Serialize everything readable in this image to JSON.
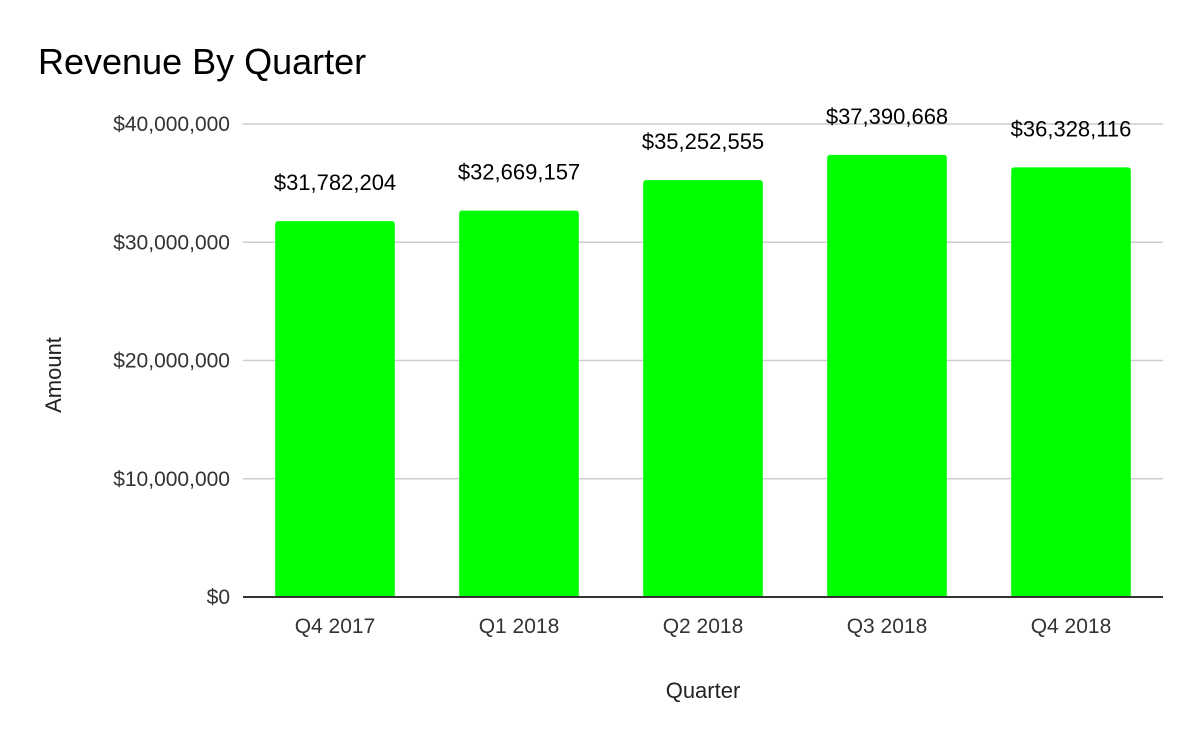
{
  "chart_data": {
    "type": "bar",
    "title": "Revenue By Quarter",
    "xlabel": "Quarter",
    "ylabel": "Amount",
    "categories": [
      "Q4 2017",
      "Q1 2018",
      "Q2 2018",
      "Q3 2018",
      "Q4 2018"
    ],
    "values": [
      31782204,
      32669157,
      35252555,
      37390668,
      36328116
    ],
    "data_labels": [
      "$31,782,204",
      "$32,669,157",
      "$35,252,555",
      "$37,390,668",
      "$36,328,116"
    ],
    "ylim": [
      0,
      40000000
    ],
    "yticks": [
      0,
      10000000,
      20000000,
      30000000,
      40000000
    ],
    "ytick_labels": [
      "$0",
      "$10,000,000",
      "$20,000,000",
      "$30,000,000",
      "$40,000,000"
    ],
    "bar_color": "#00ff00",
    "grid": true,
    "legend": "none"
  }
}
